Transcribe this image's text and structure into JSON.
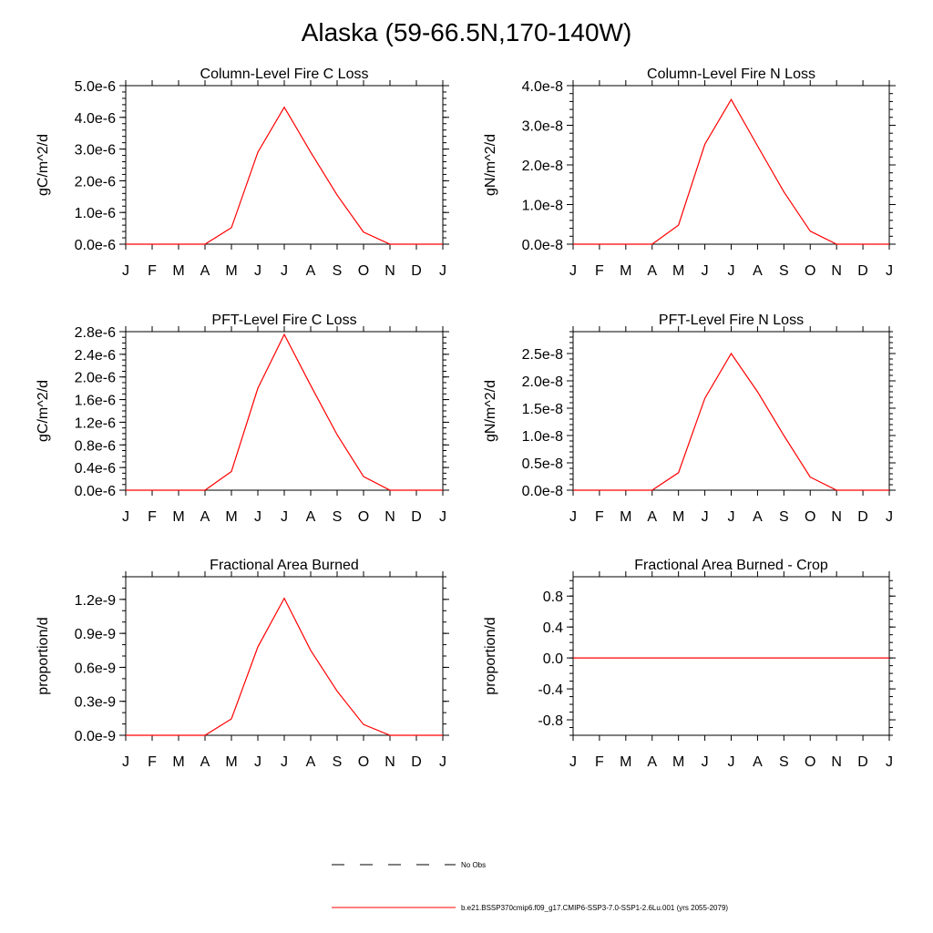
{
  "figure": {
    "title": "Alaska (59-66.5N,170-140W)"
  },
  "months": [
    "J",
    "F",
    "M",
    "A",
    "M",
    "J",
    "J",
    "A",
    "S",
    "O",
    "N",
    "D",
    "J"
  ],
  "chart_data": [
    {
      "type": "line",
      "title": "Column-Level Fire C Loss",
      "ylabel": "gC/m^2/d",
      "xlabel": "",
      "ylim": [
        0,
        5e-06
      ],
      "yticks": [
        0,
        1e-06,
        2e-06,
        3e-06,
        4e-06,
        5e-06
      ],
      "ytick_labels": [
        "0.0e-6",
        "1.0e-6",
        "2.0e-6",
        "3.0e-6",
        "4.0e-6",
        "5.0e-6"
      ],
      "yminor": 5,
      "series": [
        {
          "values": [
            0,
            0,
            0,
            0,
            5.2e-07,
            2.9e-06,
            4.32e-06,
            2.9e-06,
            1.55e-06,
            3.8e-07,
            0,
            0,
            0
          ],
          "color": "#ff0000"
        }
      ]
    },
    {
      "type": "line",
      "title": "Column-Level Fire N Loss",
      "ylabel": "gN/m^2/d",
      "xlabel": "",
      "ylim": [
        0,
        4e-08
      ],
      "yticks": [
        0,
        1e-08,
        2e-08,
        3e-08,
        4e-08
      ],
      "ytick_labels": [
        "0.0e-8",
        "1.0e-8",
        "2.0e-8",
        "3.0e-8",
        "4.0e-8"
      ],
      "yminor": 5,
      "series": [
        {
          "values": [
            0,
            0,
            0,
            0,
            4.8e-09,
            2.52e-08,
            3.65e-08,
            2.48e-08,
            1.32e-08,
            3.3e-09,
            0,
            0,
            0
          ],
          "color": "#ff0000"
        }
      ]
    },
    {
      "type": "line",
      "title": "PFT-Level Fire C Loss",
      "ylabel": "gC/m^2/d",
      "xlabel": "",
      "ylim": [
        0,
        2.8e-06
      ],
      "yticks": [
        0,
        4e-07,
        8e-07,
        1.2e-06,
        1.6e-06,
        2e-06,
        2.4e-06,
        2.8e-06
      ],
      "ytick_labels": [
        "0.0e-6",
        "0.4e-6",
        "0.8e-6",
        "1.2e-6",
        "1.6e-6",
        "2.0e-6",
        "2.4e-6",
        "2.8e-6"
      ],
      "yminor": 4,
      "series": [
        {
          "values": [
            0,
            0,
            0,
            0,
            3.3e-07,
            1.8e-06,
            2.75e-06,
            1.85e-06,
            9.8e-07,
            2.4e-07,
            0,
            0,
            0
          ],
          "color": "#ff0000"
        }
      ]
    },
    {
      "type": "line",
      "title": "PFT-Level Fire N Loss",
      "ylabel": "gN/m^2/d",
      "xlabel": "",
      "ylim": [
        0,
        2.9e-08
      ],
      "yticks": [
        0,
        5e-09,
        1e-08,
        1.5e-08,
        2e-08,
        2.5e-08
      ],
      "ytick_labels": [
        "0.0e-8",
        "0.5e-8",
        "1.0e-8",
        "1.5e-8",
        "2.0e-8",
        "2.5e-8"
      ],
      "yminor": 5,
      "series": [
        {
          "values": [
            0,
            0,
            0,
            0,
            3.2e-09,
            1.68e-08,
            2.5e-08,
            1.8e-08,
            1e-08,
            2.4e-09,
            0,
            0,
            0
          ],
          "color": "#ff0000"
        }
      ]
    },
    {
      "type": "line",
      "title": "Fractional Area Burned",
      "ylabel": "proportion/d",
      "xlabel": "",
      "ylim": [
        0,
        1.4e-09
      ],
      "yticks": [
        0,
        3e-10,
        6e-10,
        9e-10,
        1.2e-09
      ],
      "ytick_labels": [
        "0.0e-9",
        "0.3e-9",
        "0.6e-9",
        "0.9e-9",
        "1.2e-9"
      ],
      "yminor": 3,
      "series": [
        {
          "values": [
            0,
            0,
            0,
            0,
            1.45e-10,
            7.8e-10,
            1.21e-09,
            7.5e-10,
            3.9e-10,
            9.5e-11,
            0,
            0,
            0
          ],
          "color": "#ff0000"
        }
      ]
    },
    {
      "type": "line",
      "title": "Fractional Area Burned - Crop",
      "ylabel": "proportion/d",
      "xlabel": "",
      "ylim": [
        -1.0,
        1.05
      ],
      "yticks": [
        -0.8,
        -0.4,
        0.0,
        0.4,
        0.8
      ],
      "ytick_labels": [
        "-0.8",
        "-0.4",
        "0.0",
        "0.4",
        "0.8"
      ],
      "yminor": 4,
      "series": [
        {
          "values": [
            0,
            0,
            0,
            0,
            0,
            0,
            0,
            0,
            0,
            0,
            0,
            0,
            0
          ],
          "color": "#ff0000"
        }
      ]
    }
  ],
  "legend": {
    "items": [
      {
        "label": "No Obs",
        "style": "dashed",
        "color": "#000000"
      },
      {
        "label": "b.e21.BSSP370cmip6.f09_g17.CMIP6-SSP3-7.0-SSP1-2.6Lu.001 (yrs 2055-2079)",
        "style": "solid",
        "color": "#ff0000"
      }
    ]
  }
}
